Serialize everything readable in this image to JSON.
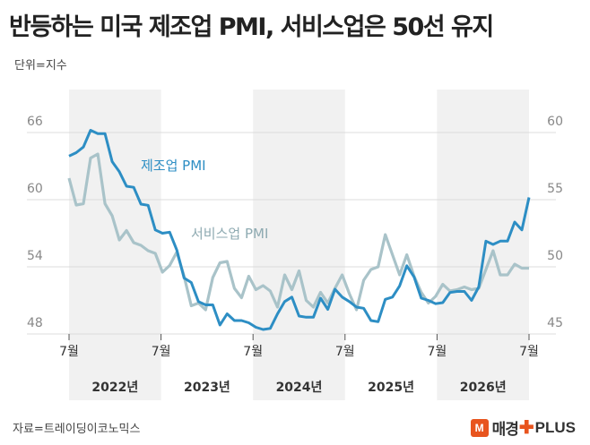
{
  "title": "반등하는 미국 제조업 PMI, 서비스업은 50선 유지",
  "unit_note": "단위=지수",
  "source": "자료=트레이딩이코노믹스",
  "brand": {
    "badge": "M",
    "name": "매경",
    "cross": "✚",
    "plus": "PLUS"
  },
  "colors": {
    "manufacturing": "#2d8ec4",
    "services": "#a9c3c9",
    "shade": "#f1f1f1",
    "grid": "#dcdcdc",
    "axis_text": "#888888"
  },
  "chart_data": {
    "type": "line",
    "x_tick_labels": [
      "7월",
      "7월",
      "7월",
      "7월",
      "7월",
      "7월"
    ],
    "year_labels": [
      "2022년",
      "2023년",
      "2024년",
      "2025년",
      "2026년"
    ],
    "left_axis": {
      "ticks": [
        66,
        60,
        54,
        48
      ],
      "ylim": [
        48,
        66
      ]
    },
    "right_axis": {
      "ticks": [
        60,
        55,
        50,
        45
      ],
      "ylim": [
        45,
        60
      ]
    },
    "series": [
      {
        "name": "제조업 PMI",
        "axis": "left",
        "values": [
          63.9,
          64.2,
          64.7,
          66.2,
          65.9,
          65.9,
          63.4,
          62.5,
          61.2,
          61.1,
          59.6,
          59.5,
          57.3,
          57.0,
          57.1,
          55.5,
          53.0,
          52.6,
          50.9,
          50.6,
          50.6,
          48.8,
          49.8,
          49.2,
          49.2,
          49.0,
          48.6,
          48.4,
          48.5,
          49.8,
          50.9,
          51.3,
          49.6,
          49.5,
          49.5,
          51.2,
          50.2,
          52.0,
          51.3,
          50.9,
          50.4,
          50.3,
          49.2,
          49.1,
          51.1,
          51.3,
          52.3,
          54.1,
          53.1,
          51.2,
          51.0,
          50.7,
          50.8,
          51.7,
          51.8,
          51.8,
          51.0,
          52.2,
          56.3,
          56.0,
          56.3,
          56.3,
          58.0,
          57.3,
          60.2
        ],
        "labels": {
          "name": "제조업 PMI"
        }
      },
      {
        "name": "서비스업 PMI",
        "axis": "right",
        "values": [
          56.6,
          54.6,
          54.7,
          58.1,
          58.4,
          54.7,
          53.8,
          52.0,
          52.7,
          51.8,
          51.6,
          51.2,
          51.0,
          49.6,
          50.1,
          51.1,
          49.3,
          47.1,
          47.3,
          46.8,
          49.2,
          50.3,
          50.4,
          48.4,
          47.7,
          49.3,
          48.3,
          48.6,
          48.2,
          47.0,
          49.4,
          48.3,
          49.7,
          47.5,
          47.0,
          48.1,
          47.3,
          48.4,
          49.4,
          48.0,
          46.8,
          49.0,
          49.8,
          50.0,
          52.4,
          50.9,
          49.4,
          50.9,
          49.3,
          48.1,
          47.3,
          47.8,
          48.7,
          48.2,
          48.3,
          48.5,
          48.3,
          48.4,
          49.8,
          51.2,
          49.4,
          49.4,
          50.2,
          49.9,
          49.9
        ]
      }
    ],
    "legend": "inline labels near lines"
  }
}
